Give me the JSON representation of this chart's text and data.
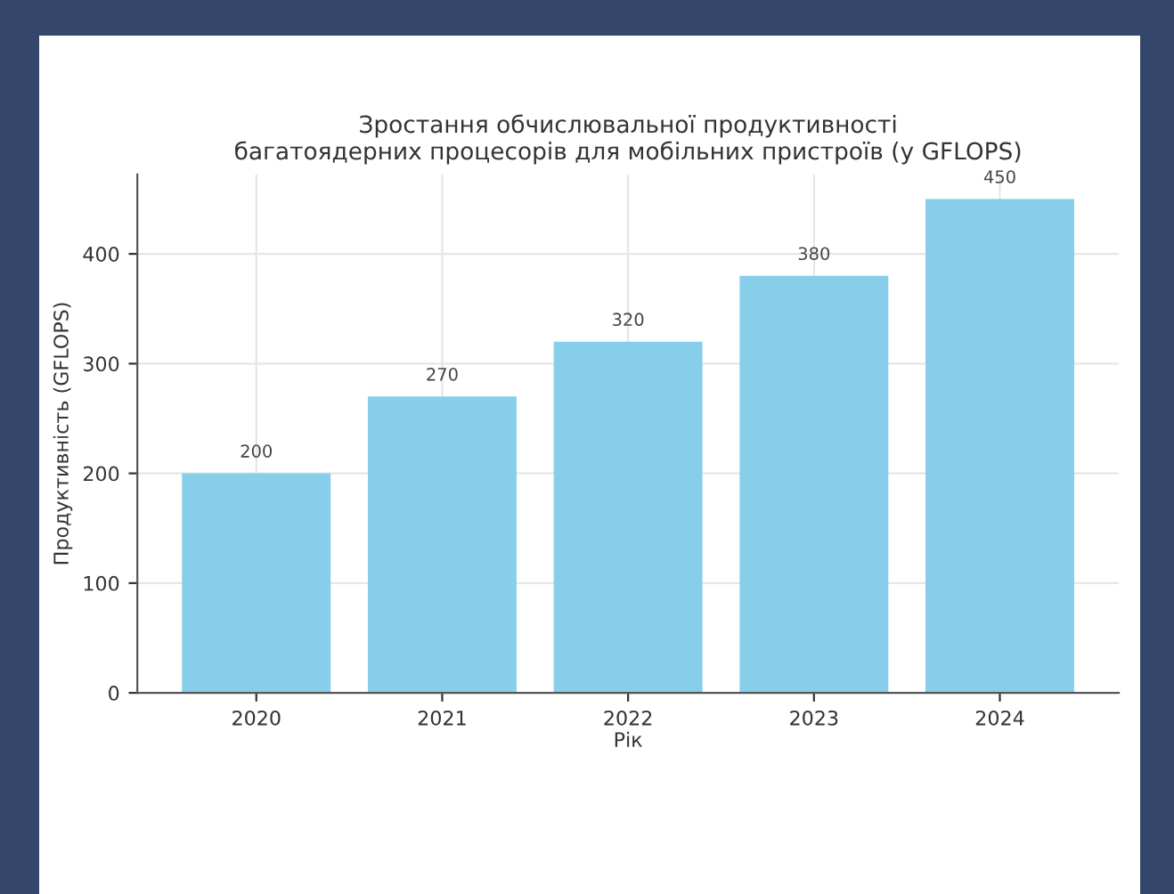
{
  "chart_data": {
    "type": "bar",
    "title": "Зростання обчислювальної продуктивності\nбагатоядерних процесорів для мобільних пристроїв (у GFLOPS)",
    "xlabel": "Рік",
    "ylabel": "Продуктивність (GFLOPS)",
    "categories": [
      "2020",
      "2021",
      "2022",
      "2023",
      "2024"
    ],
    "values": [
      200,
      270,
      320,
      380,
      450
    ],
    "color": "#87ceeb",
    "ylim": [
      0,
      472.5
    ],
    "yticks": [
      0,
      100,
      200,
      300,
      400
    ],
    "grid": true,
    "data_labels": true
  }
}
